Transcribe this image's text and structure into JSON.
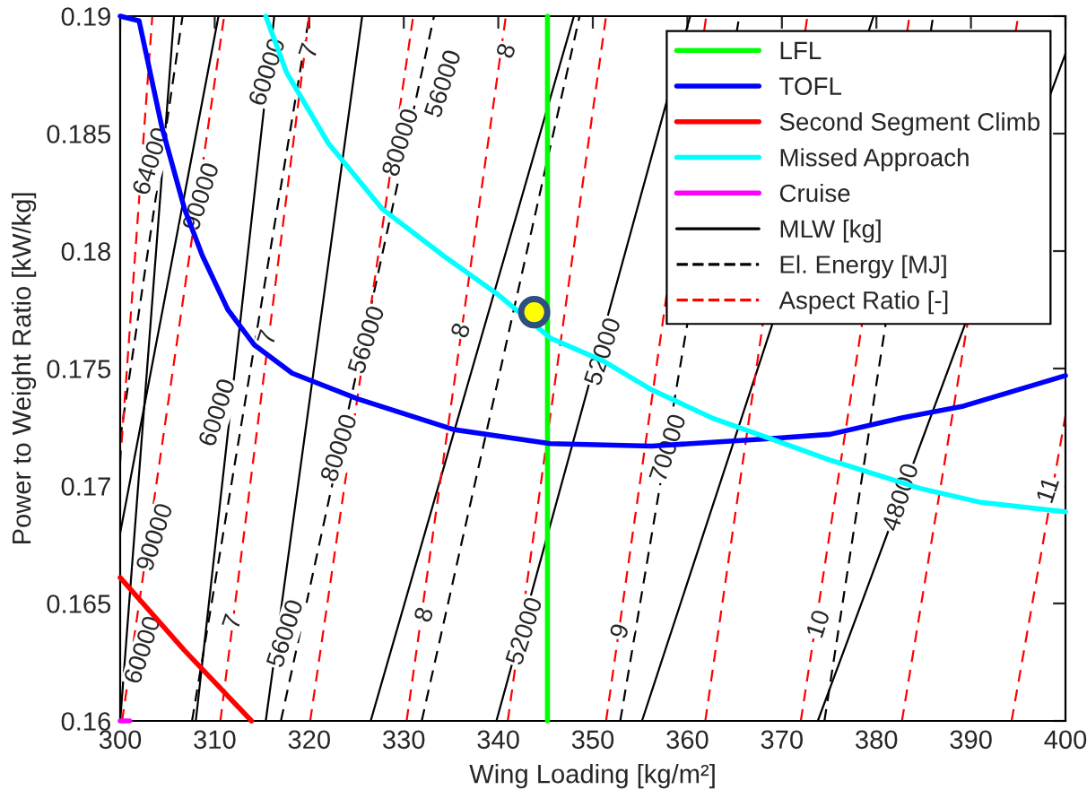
{
  "chart_data": {
    "type": "line",
    "xlabel": "Wing Loading [kg/m²]",
    "ylabel": "Power to Weight Ratio [kW/kg]",
    "xlim": [
      300,
      400
    ],
    "xticks": [
      300,
      310,
      320,
      330,
      340,
      350,
      360,
      370,
      380,
      390,
      400
    ],
    "ylim": [
      0.16,
      0.19
    ],
    "yticks": [
      0.16,
      0.165,
      0.17,
      0.175,
      0.18,
      0.185,
      0.19
    ],
    "grid": false,
    "legend": "top right",
    "series": [
      {
        "name": "MLW [kg]",
        "color": "#000000",
        "line_style": "solid",
        "x": [
          300,
          305.7
        ],
        "values": [
          0.16,
          0.19
        ]
      },
      {
        "color": "#000000",
        "line_style": "solid",
        "x": [
          300,
          310.4
        ],
        "values": [
          0.168,
          0.19
        ]
      },
      {
        "color": "#000000",
        "line_style": "solid",
        "x": [
          308,
          316.3
        ],
        "values": [
          0.16,
          0.19
        ]
      },
      {
        "color": "#000000",
        "line_style": "solid",
        "x": [
          315.4,
          325.6
        ],
        "values": [
          0.16,
          0.19
        ]
      },
      {
        "color": "#000000",
        "line_style": "solid",
        "x": [
          326.5,
          348
        ],
        "values": [
          0.16,
          0.19
        ]
      },
      {
        "color": "#000000",
        "line_style": "solid",
        "x": [
          339.8,
          360.3
        ],
        "values": [
          0.16,
          0.19
        ]
      },
      {
        "color": "#000000",
        "line_style": "solid",
        "x": [
          355.2,
          379.7
        ],
        "values": [
          0.16,
          0.19
        ]
      },
      {
        "color": "#000000",
        "line_style": "solid",
        "x": [
          373.8,
          400
        ],
        "values": [
          0.16,
          0.1884
        ]
      },
      {
        "name": "El. Energy [MJ]",
        "color": "#000000",
        "line_style": "dashed",
        "x": [
          300,
          306.6
        ],
        "values": [
          0.172,
          0.19
        ]
      },
      {
        "color": "#000000",
        "line_style": "dashed",
        "x": [
          307.6,
          320
        ],
        "values": [
          0.16,
          0.19
        ]
      },
      {
        "color": "#000000",
        "line_style": "dashed",
        "x": [
          317,
          333.2
        ],
        "values": [
          0.16,
          0.19
        ]
      },
      {
        "color": "#000000",
        "line_style": "dashed",
        "x": [
          331.9,
          348.6
        ],
        "values": [
          0.16,
          0.19
        ]
      },
      {
        "color": "#000000",
        "line_style": "dashed",
        "x": [
          352.9,
          365.5
        ],
        "values": [
          0.16,
          0.19
        ]
      },
      {
        "color": "#000000",
        "line_style": "dashed",
        "x": [
          374.5,
          386
        ],
        "values": [
          0.16,
          0.19
        ]
      },
      {
        "name": "Aspect Ratio [-]",
        "color": "#ff0000",
        "line_style": "dashed",
        "x": [
          300,
          303.4
        ],
        "values": [
          0.171,
          0.19
        ]
      },
      {
        "color": "#ff0000",
        "line_style": "dashed",
        "x": [
          300.2,
          311
        ],
        "values": [
          0.16,
          0.19
        ]
      },
      {
        "color": "#ff0000",
        "line_style": "dashed",
        "x": [
          310.6,
          320
        ],
        "values": [
          0.16,
          0.19
        ]
      },
      {
        "color": "#ff0000",
        "line_style": "dashed",
        "x": [
          320.1,
          331
        ],
        "values": [
          0.16,
          0.19
        ]
      },
      {
        "color": "#ff0000",
        "line_style": "dashed",
        "x": [
          330.3,
          340.8
        ],
        "values": [
          0.16,
          0.19
        ]
      },
      {
        "color": "#ff0000",
        "line_style": "dashed",
        "x": [
          341,
          351.4
        ],
        "values": [
          0.16,
          0.19
        ]
      },
      {
        "color": "#ff0000",
        "line_style": "dashed",
        "x": [
          351.4,
          362
        ],
        "values": [
          0.16,
          0.19
        ]
      },
      {
        "color": "#ff0000",
        "line_style": "dashed",
        "x": [
          361.9,
          372.7
        ],
        "values": [
          0.16,
          0.19
        ]
      },
      {
        "color": "#ff0000",
        "line_style": "dashed",
        "x": [
          372,
          383.5
        ],
        "values": [
          0.16,
          0.19
        ]
      },
      {
        "color": "#ff0000",
        "line_style": "dashed",
        "x": [
          382.7,
          395
        ],
        "values": [
          0.16,
          0.19
        ]
      },
      {
        "color": "#ff0000",
        "line_style": "dashed",
        "x": [
          394.3,
          400
        ],
        "values": [
          0.16,
          0.173
        ]
      },
      {
        "name": "LFL",
        "color": "#00ff00",
        "line_style": "solid",
        "x": [
          345.2,
          345.2
        ],
        "values": [
          0.16,
          0.19
        ]
      },
      {
        "name": "TOFL",
        "color": "#0000ff",
        "line_style": "solid",
        "x": [
          300,
          302,
          304.4,
          306.8,
          308.7,
          311.4,
          314.2,
          318.2,
          325.2,
          335.3,
          345.5,
          356.2,
          368.3,
          375.1,
          382.7,
          389.2,
          400
        ],
        "values": [
          0.19,
          0.1898,
          0.1853,
          0.1818,
          0.1798,
          0.1775,
          0.176,
          0.1748,
          0.1737,
          0.1724,
          0.1718,
          0.1717,
          0.172,
          0.1722,
          0.1729,
          0.1734,
          0.1747
        ]
      },
      {
        "name": "Second Segment Climb",
        "color": "#ff0000",
        "line_style": "solid",
        "x": [
          300,
          306.8,
          313.9
        ],
        "values": [
          0.1661,
          0.163,
          0.16
        ]
      },
      {
        "name": "Missed Approach",
        "color": "#00ffff",
        "line_style": "solid",
        "x": [
          315.4,
          317.6,
          322,
          327.7,
          334.2,
          339.8,
          345.5,
          351.2,
          356.2,
          362.6,
          368.9,
          375.1,
          384.6,
          391.1,
          400
        ],
        "values": [
          0.19,
          0.1876,
          0.1846,
          0.1818,
          0.1798,
          0.1782,
          0.1763,
          0.1753,
          0.1741,
          0.1729,
          0.172,
          0.1711,
          0.1699,
          0.1693,
          0.1689
        ]
      },
      {
        "name": "Cruise",
        "color": "#ff00ff",
        "line_style": "solid",
        "x": [
          300,
          301
        ],
        "values": [
          0.16,
          0.16
        ]
      },
      {
        "type": "scatter",
        "marker": "circle",
        "color": "#ffff00",
        "x": [
          343.8
        ],
        "values": [
          0.1774
        ]
      }
    ],
    "annotations": [
      {
        "text": "60000",
        "x": 302.5,
        "y": 0.163
      },
      {
        "text": "60000",
        "x": 310.4,
        "y": 0.1731
      },
      {
        "text": "60000",
        "x": 315.7,
        "y": 0.1876
      },
      {
        "text": "64000",
        "x": 303.4,
        "y": 0.1838
      },
      {
        "text": "90000",
        "x": 303.8,
        "y": 0.1678
      },
      {
        "text": "90000",
        "x": 308.7,
        "y": 0.1823
      },
      {
        "text": "80000",
        "x": 329.8,
        "y": 0.1846
      },
      {
        "text": "80000",
        "x": 323.3,
        "y": 0.1716
      },
      {
        "text": "56000",
        "x": 334.3,
        "y": 0.1871
      },
      {
        "text": "56000",
        "x": 326.2,
        "y": 0.1762
      },
      {
        "text": "56000",
        "x": 317.6,
        "y": 0.1637
      },
      {
        "text": "52000",
        "x": 351.2,
        "y": 0.1757
      },
      {
        "text": "52000",
        "x": 342.9,
        "y": 0.1638
      },
      {
        "text": "70000",
        "x": 358.1,
        "y": 0.1716
      },
      {
        "text": "48000",
        "x": 382.7,
        "y": 0.1695
      },
      {
        "text": "7",
        "x": 320.1,
        "y": 0.1885
      },
      {
        "text": "7",
        "x": 315.7,
        "y": 0.1763
      },
      {
        "text": "7",
        "x": 312,
        "y": 0.1642
      },
      {
        "text": "8",
        "x": 341,
        "y": 0.1885
      },
      {
        "text": "8",
        "x": 336.2,
        "y": 0.1766
      },
      {
        "text": "8",
        "x": 332.3,
        "y": 0.1645
      },
      {
        "text": "9",
        "x": 353,
        "y": 0.1638
      },
      {
        "text": "10",
        "x": 374,
        "y": 0.1641
      },
      {
        "text": "11",
        "x": 398.3,
        "y": 0.1698
      }
    ]
  }
}
